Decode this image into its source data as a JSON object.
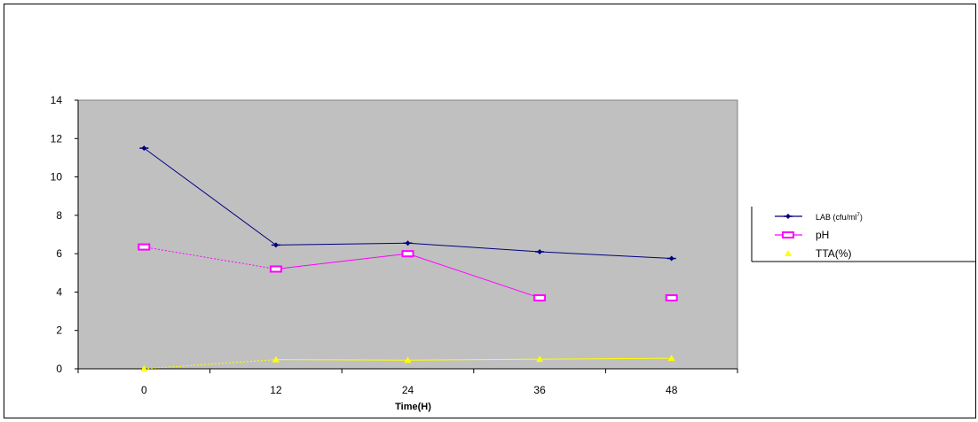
{
  "chart_data": {
    "type": "line",
    "title": "",
    "xlabel": "Time(H)",
    "ylabel": "",
    "x": [
      0,
      12,
      24,
      36,
      48
    ],
    "ylim": [
      0,
      14
    ],
    "yticks": [
      0,
      2,
      4,
      6,
      8,
      10,
      12,
      14
    ],
    "grid": false,
    "plot_background": "#C0C0C0",
    "legend_position": "right",
    "series": [
      {
        "name": "LAB (cfu/ml",
        "name_superscript": "7",
        "name_suffix": ")",
        "values": [
          11.5,
          6.45,
          6.55,
          6.1,
          5.75
        ],
        "color": "#000080",
        "marker": "diamond",
        "dashed_segments": []
      },
      {
        "name": "pH",
        "values": [
          6.35,
          5.2,
          6.0,
          3.7,
          3.7
        ],
        "color": "#FF00FF",
        "marker": "square",
        "dashed_segments": [
          0
        ],
        "hidden_segments": [
          3
        ]
      },
      {
        "name": "TTA(%)",
        "values": [
          0.0,
          0.48,
          0.45,
          0.5,
          0.55
        ],
        "color": "#FFFF00",
        "marker": "triangle",
        "dashed_segments": [
          0
        ]
      }
    ]
  }
}
